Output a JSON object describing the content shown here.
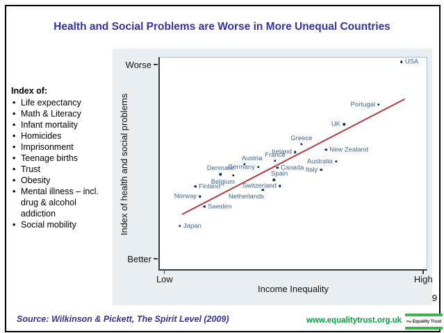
{
  "slide": {
    "title": "Health and Social Problems are Worse in More Unequal Countries",
    "page_number": "9",
    "source": "Source: Wilkinson & Pickett, The Spirit Level (2009)",
    "footer_url": "www.equalitytrust.org.uk",
    "logo": {
      "prefix": "The",
      "name": "Equality Trust"
    },
    "accent_colors": {
      "title_blue": "#3333a3",
      "footer_green": "#00a13c",
      "logo_green": "#3cb44a"
    }
  },
  "sidebar": {
    "heading": "Index of:",
    "items": [
      "Life expectancy",
      "Math & Literacy",
      "Infant mortality",
      "Homicides",
      "Imprisonment",
      "Teenage births",
      "Trust",
      "Obesity",
      "Mental illness – incl. drug & alcohol addiction",
      "Social mobility"
    ]
  },
  "chart_data": {
    "type": "scatter",
    "title": "",
    "xlabel": "Income Inequality",
    "ylabel": "Index of health and social problems",
    "axis_note": "Axes are qualitative; point coordinates are fractions of the plot box (fx: 0=left/Low, 1=right/High; fy: 0=top/Worse, 1=bottom/Better)",
    "x_ticks": [
      {
        "label": "Low",
        "frac": 0.023
      },
      {
        "label": "High",
        "frac": 0.985
      }
    ],
    "y_ticks": [
      {
        "label": "Worse",
        "frac": 0.036
      },
      {
        "label": "Better",
        "frac": 0.945
      }
    ],
    "points": [
      {
        "label": "USA",
        "fx": 0.904,
        "fy": 0.023,
        "label_pos": "right"
      },
      {
        "label": "Portugal",
        "fx": 0.819,
        "fy": 0.224,
        "label_pos": "left"
      },
      {
        "label": "UK",
        "fx": 0.69,
        "fy": 0.315,
        "label_pos": "left"
      },
      {
        "label": "New Zealand",
        "fx": 0.623,
        "fy": 0.435,
        "label_pos": "right"
      },
      {
        "label": "Greece",
        "fx": 0.532,
        "fy": 0.409,
        "label_pos": "above"
      },
      {
        "label": "Ireland",
        "fx": 0.509,
        "fy": 0.445,
        "label_pos": "left"
      },
      {
        "label": "Austria",
        "fx": 0.32,
        "fy": 0.503,
        "label_pos": "above-right"
      },
      {
        "label": "France",
        "fx": 0.434,
        "fy": 0.487,
        "label_pos": "above"
      },
      {
        "label": "Germany",
        "fx": 0.372,
        "fy": 0.516,
        "label_pos": "left"
      },
      {
        "label": "Denmark",
        "fx": 0.23,
        "fy": 0.549,
        "label_pos": "above"
      },
      {
        "label": "Belgium",
        "fx": 0.279,
        "fy": 0.555,
        "label_pos": "below-left"
      },
      {
        "label": "Canada",
        "fx": 0.442,
        "fy": 0.519,
        "label_pos": "right"
      },
      {
        "label": "Australia",
        "fx": 0.661,
        "fy": 0.49,
        "label_pos": "left"
      },
      {
        "label": "Italy",
        "fx": 0.605,
        "fy": 0.529,
        "label_pos": "left"
      },
      {
        "label": "Spain",
        "fx": 0.429,
        "fy": 0.575,
        "label_pos": "above-right"
      },
      {
        "label": "Switzerland",
        "fx": 0.452,
        "fy": 0.604,
        "label_pos": "left"
      },
      {
        "label": "Netherlands",
        "fx": 0.388,
        "fy": 0.623,
        "label_pos": "below-left"
      },
      {
        "label": "Finland",
        "fx": 0.137,
        "fy": 0.607,
        "label_pos": "right"
      },
      {
        "label": "Norway",
        "fx": 0.155,
        "fy": 0.653,
        "label_pos": "left"
      },
      {
        "label": "Sweden",
        "fx": 0.171,
        "fy": 0.701,
        "label_pos": "right"
      },
      {
        "label": "Japan",
        "fx": 0.08,
        "fy": 0.792,
        "label_pos": "right"
      }
    ],
    "trendline": {
      "x1": 0.088,
      "y1": 0.737,
      "x2": 0.915,
      "y2": 0.198,
      "color": "#b23b3e"
    },
    "colors": {
      "dot": "#14315c",
      "point_label": "#3d639b",
      "plot_bg": "#ffffff",
      "panel_bg": "#e8eef2"
    },
    "legend": null,
    "grid": false
  }
}
